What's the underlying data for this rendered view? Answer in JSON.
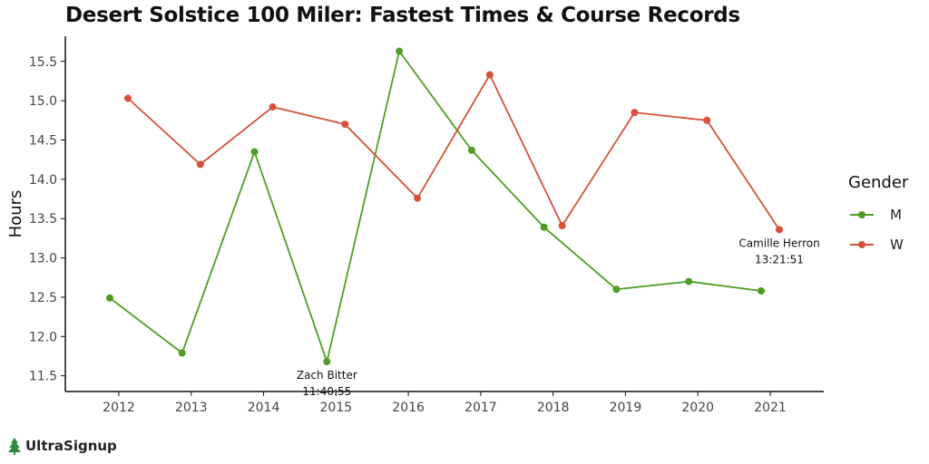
{
  "chart_data": {
    "type": "line",
    "title": "Desert Solstice 100 Miler: Fastest Times & Course Records",
    "xlabel": "",
    "ylabel": "Hours",
    "categories": [
      2012,
      2013,
      2014,
      2015,
      2016,
      2017,
      2018,
      2019,
      2020,
      2021
    ],
    "x_ticks": [
      "2012",
      "2013",
      "2014",
      "2015",
      "2016",
      "2017",
      "2018",
      "2019",
      "2020",
      "2021"
    ],
    "y_ticks": [
      "11.5",
      "12.0",
      "12.5",
      "13.0",
      "13.5",
      "14.0",
      "14.5",
      "15.0",
      "15.5"
    ],
    "ylim": [
      11.3,
      15.82
    ],
    "grid": false,
    "legend_position": "right",
    "legend_title": "Gender",
    "series": [
      {
        "name": "M",
        "color": "#4d9e22",
        "values": [
          12.49,
          11.79,
          14.35,
          11.68,
          15.63,
          14.37,
          13.39,
          12.6,
          12.7,
          12.58
        ]
      },
      {
        "name": "W",
        "color": "#d4513a",
        "values": [
          15.03,
          14.19,
          14.92,
          14.7,
          13.76,
          15.33,
          13.41,
          14.85,
          14.75,
          13.36
        ]
      }
    ],
    "annotations": [
      {
        "series": "M",
        "year": 2015,
        "name": "Zach Bitter",
        "time": "11:40:55"
      },
      {
        "series": "W",
        "year": 2021,
        "name": "Camille Herron",
        "time": "13:21:51"
      }
    ]
  },
  "brand": {
    "name": "UltraSignup",
    "icon": "tree-icon",
    "color": "#2e8b3a"
  }
}
